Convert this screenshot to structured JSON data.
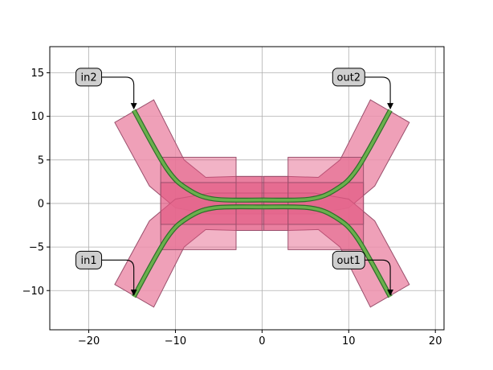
{
  "chart_data": {
    "type": "layout",
    "title": "",
    "xlabel": "",
    "ylabel": "",
    "xlim": [
      -24.5,
      21
    ],
    "ylim": [
      -14.5,
      18
    ],
    "xticks": [
      -20,
      -10,
      0,
      10,
      20
    ],
    "yticks": [
      15,
      10,
      5,
      0,
      -5,
      -10
    ],
    "xtick_labels": [
      "−20",
      "−10",
      "0",
      "10",
      "20"
    ],
    "ytick_labels": [
      "15",
      "10",
      "5",
      "0",
      "−5",
      "−10"
    ],
    "grid": true,
    "colors": {
      "waveguide": "#6ab04c",
      "waveguide_edge": "#2d6e2a",
      "cladding": "#ec8fab",
      "cladding_edge": "#9a4f6c",
      "rect_fill": "#e35680",
      "grid": "#b0b0b0"
    },
    "ports": [
      {
        "name": "in2",
        "x": -14.8,
        "y": 10.7,
        "label_x": -20,
        "label_y": 14.5
      },
      {
        "name": "out2",
        "x": 14.8,
        "y": 10.7,
        "label_x": 10,
        "label_y": 14.5
      },
      {
        "name": "in1",
        "x": -14.8,
        "y": -10.7,
        "label_x": -20,
        "label_y": -6.5
      },
      {
        "name": "out1",
        "x": 14.8,
        "y": -10.7,
        "label_x": 10,
        "label_y": -6.5
      }
    ],
    "rects": [
      {
        "x0": -11.7,
        "x1": -3,
        "y0": -5.3,
        "y1": 5.3
      },
      {
        "x0": 3,
        "x1": 11.7,
        "y0": -5.3,
        "y1": 5.3
      },
      {
        "x0": -11.7,
        "x1": 11.7,
        "y0": -2.4,
        "y1": 2.4
      },
      {
        "x0": -3,
        "x1": 0,
        "y0": -3.1,
        "y1": 3.1
      },
      {
        "x0": 0.2,
        "x1": 3,
        "y0": -3.1,
        "y1": 3.1
      }
    ],
    "waveguides": [
      {
        "name": "upper-left",
        "points": [
          [
            -14.8,
            10.7
          ],
          [
            -11,
            4
          ],
          [
            -8.5,
            1.6
          ],
          [
            -5.5,
            0.5
          ],
          [
            0,
            0.4
          ]
        ]
      },
      {
        "name": "upper-right",
        "points": [
          [
            0,
            0.4
          ],
          [
            5.5,
            0.5
          ],
          [
            8.5,
            1.6
          ],
          [
            11,
            4
          ],
          [
            14.8,
            10.7
          ]
        ]
      },
      {
        "name": "lower-left",
        "points": [
          [
            -14.8,
            -10.7
          ],
          [
            -11,
            -4
          ],
          [
            -8.5,
            -1.6
          ],
          [
            -5.5,
            -0.5
          ],
          [
            0,
            -0.4
          ]
        ]
      },
      {
        "name": "lower-right",
        "points": [
          [
            0,
            -0.4
          ],
          [
            5.5,
            -0.5
          ],
          [
            8.5,
            -1.6
          ],
          [
            11,
            -4
          ],
          [
            14.8,
            -10.7
          ]
        ]
      }
    ],
    "claddings": [
      {
        "name": "upper",
        "points": [
          [
            -17,
            9.3
          ],
          [
            -12.5,
            11.9
          ],
          [
            -9,
            5
          ],
          [
            -6.5,
            3
          ],
          [
            -3,
            3.1
          ],
          [
            3,
            3.1
          ],
          [
            6.5,
            3
          ],
          [
            9,
            5
          ],
          [
            12.5,
            11.9
          ],
          [
            17,
            9.3
          ],
          [
            13,
            2
          ],
          [
            10,
            -0.5
          ],
          [
            6,
            -1.2
          ],
          [
            -6,
            -1.2
          ],
          [
            -10,
            -0.5
          ],
          [
            -13,
            2
          ]
        ]
      },
      {
        "name": "lower",
        "points": [
          [
            -17,
            -9.3
          ],
          [
            -12.5,
            -11.9
          ],
          [
            -9,
            -5
          ],
          [
            -6.5,
            -3
          ],
          [
            -3,
            -3.1
          ],
          [
            3,
            -3.1
          ],
          [
            6.5,
            -3
          ],
          [
            9,
            -5
          ],
          [
            12.5,
            -11.9
          ],
          [
            17,
            -9.3
          ],
          [
            13,
            -2
          ],
          [
            10,
            0.5
          ],
          [
            6,
            1.2
          ],
          [
            -6,
            1.2
          ],
          [
            -10,
            0.5
          ],
          [
            -13,
            -2
          ]
        ]
      }
    ]
  }
}
